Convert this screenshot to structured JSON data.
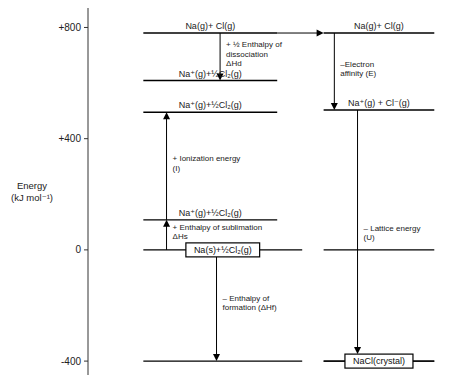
{
  "chart_data": {
    "type": "energy_levels",
    "y_label": "Energy\n(kJ mol⁻¹)",
    "ylim": [
      -450,
      870
    ],
    "yticks": [
      -400,
      0,
      {
        "value": 400,
        "label": "+400"
      },
      {
        "value": 800,
        "label": "+800"
      }
    ],
    "columns": [
      {
        "levels": [
          {
            "value": 780,
            "label": "Na(g)+ Cl(g)"
          },
          {
            "value": 609,
            "label": "Na⁺(g)+½Cl₂(g)"
          },
          {
            "value": 495,
            "label": "Na⁺(g)+½Cl₂(g)"
          },
          {
            "value": 108,
            "label": "Na⁺(g)+½Cl₂(g)"
          }
        ],
        "arrows": [
          {
            "from": 780,
            "to": 609,
            "label": "+ ½ Enthalpy of\ndissociation\nΔHd"
          },
          {
            "from": 108,
            "to": 495,
            "label": "+ Ionization energy\n(I)"
          },
          {
            "from": 0,
            "to": 108,
            "label": "+ Enthalpy of sublimation\nΔHs"
          }
        ]
      },
      {
        "levels": [
          {
            "value": -400
          }
        ],
        "boxes": [
          {
            "value": 0,
            "label": "Na(s)+½Cl₂(g)"
          }
        ],
        "arrows": [
          {
            "from": 0,
            "to": -400,
            "label": "– Enthalpy of\nformation (ΔHf)"
          }
        ]
      },
      {
        "levels": [
          {
            "value": 780,
            "label": "Na(g)+ Cl(g)"
          },
          {
            "value": 503,
            "label": "Na⁺(g) + Cl⁻(g)"
          },
          {
            "value": 0
          },
          {
            "value": -400
          }
        ],
        "boxes": [
          {
            "value": -400,
            "label": "NaCl(crystal)"
          }
        ],
        "arrows": [
          {
            "from": 780,
            "to": 503,
            "label": "–Electron\naffinity (E)"
          },
          {
            "from": 503,
            "to": -400,
            "label": "– Lattice energy\n(U)"
          }
        ]
      }
    ],
    "horizontal_arrows": [
      {
        "value": 780
      }
    ]
  }
}
